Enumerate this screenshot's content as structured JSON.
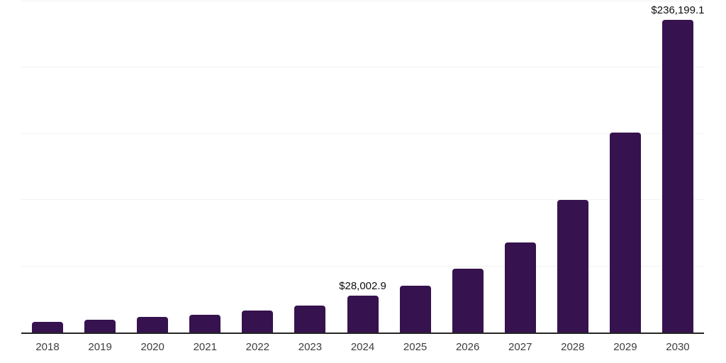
{
  "chart_data": {
    "type": "bar",
    "title": "",
    "xlabel": "",
    "ylabel": "",
    "categories": [
      "2018",
      "2019",
      "2020",
      "2021",
      "2022",
      "2023",
      "2024",
      "2025",
      "2026",
      "2027",
      "2028",
      "2029",
      "2030"
    ],
    "values": [
      8300,
      9900,
      11800,
      13650,
      16400,
      20600,
      28002.9,
      35400,
      48300,
      68200,
      99900,
      151000,
      236199.1
    ],
    "point_labels": [
      "",
      "",
      "",
      "",
      "",
      "",
      "$28,002.9",
      "",
      "",
      "",
      "",
      "",
      "$236,199.1"
    ],
    "ylim": [
      0,
      250000
    ],
    "grid_step": 50000,
    "grid": "horizontal",
    "legend": "none",
    "y_axis_tick_labels_visible": false,
    "colors": {
      "bar": "#36124E",
      "gridline": "#F2F2F2",
      "axis_line": "#262626",
      "tick_label": "#3D3D3D",
      "point_label": "#0D0D0D",
      "background": "#FFFFFF"
    }
  }
}
